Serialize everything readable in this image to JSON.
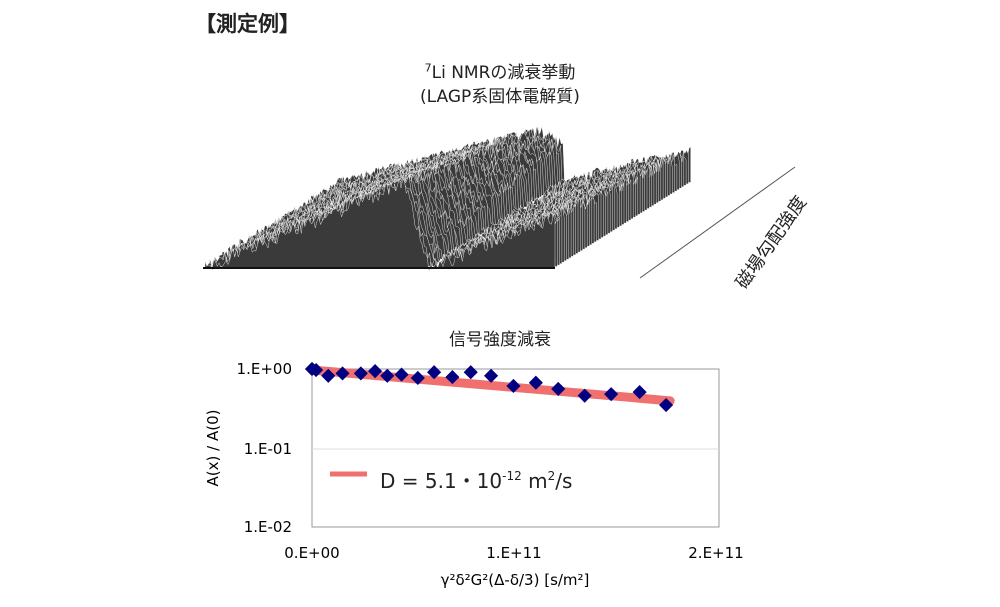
{
  "heading": "【測定例】",
  "nmr": {
    "title_sup": "7",
    "title_line1": "Li NMRの減衰挙動",
    "title_line2": "(LAGP系固体電解質)",
    "axis_label": "磁場勾配強度"
  },
  "chart_data": {
    "type": "scatter",
    "title": "信号強度減衰",
    "xlabel": "γ²δ²G²(Δ-δ/3) [s/m²]",
    "ylabel": "A(x) / A(0)",
    "xlim": [
      0,
      200000000000.0
    ],
    "ylim": [
      0.01,
      1
    ],
    "yscale": "log",
    "grid": true,
    "x_ticks": [
      "0.E+00",
      "1.E+11",
      "2.E+11"
    ],
    "y_ticks": [
      "1.E+00",
      "1.E-01",
      "1.E-02"
    ],
    "x": [
      0,
      2000000000.0,
      8000000000.0,
      15000000000.0,
      24000000000.0,
      31000000000.0,
      37000000000.0,
      44000000000.0,
      52000000000.0,
      60000000000.0,
      69000000000.0,
      78000000000.0,
      88000000000.0,
      99000000000.0,
      110000000000.0,
      121000000000.0,
      134000000000.0,
      147000000000.0,
      161000000000.0,
      174000000000.0
    ],
    "y": [
      1.0,
      0.97,
      0.82,
      0.88,
      0.88,
      0.94,
      0.82,
      0.85,
      0.77,
      0.91,
      0.79,
      0.91,
      0.82,
      0.61,
      0.67,
      0.56,
      0.46,
      0.48,
      0.51,
      0.35
    ],
    "fit": {
      "D": 5.1e-12,
      "x_range": [
        0,
        176000000000.0
      ],
      "label_main": "D = 5.1・10",
      "label_exp": "-12",
      "label_unit": " m",
      "label_unit_exp": "2",
      "label_tail": "/s"
    },
    "legend_position": "lower-left",
    "colors": {
      "points": "#000080",
      "fit": "#f07070"
    }
  }
}
